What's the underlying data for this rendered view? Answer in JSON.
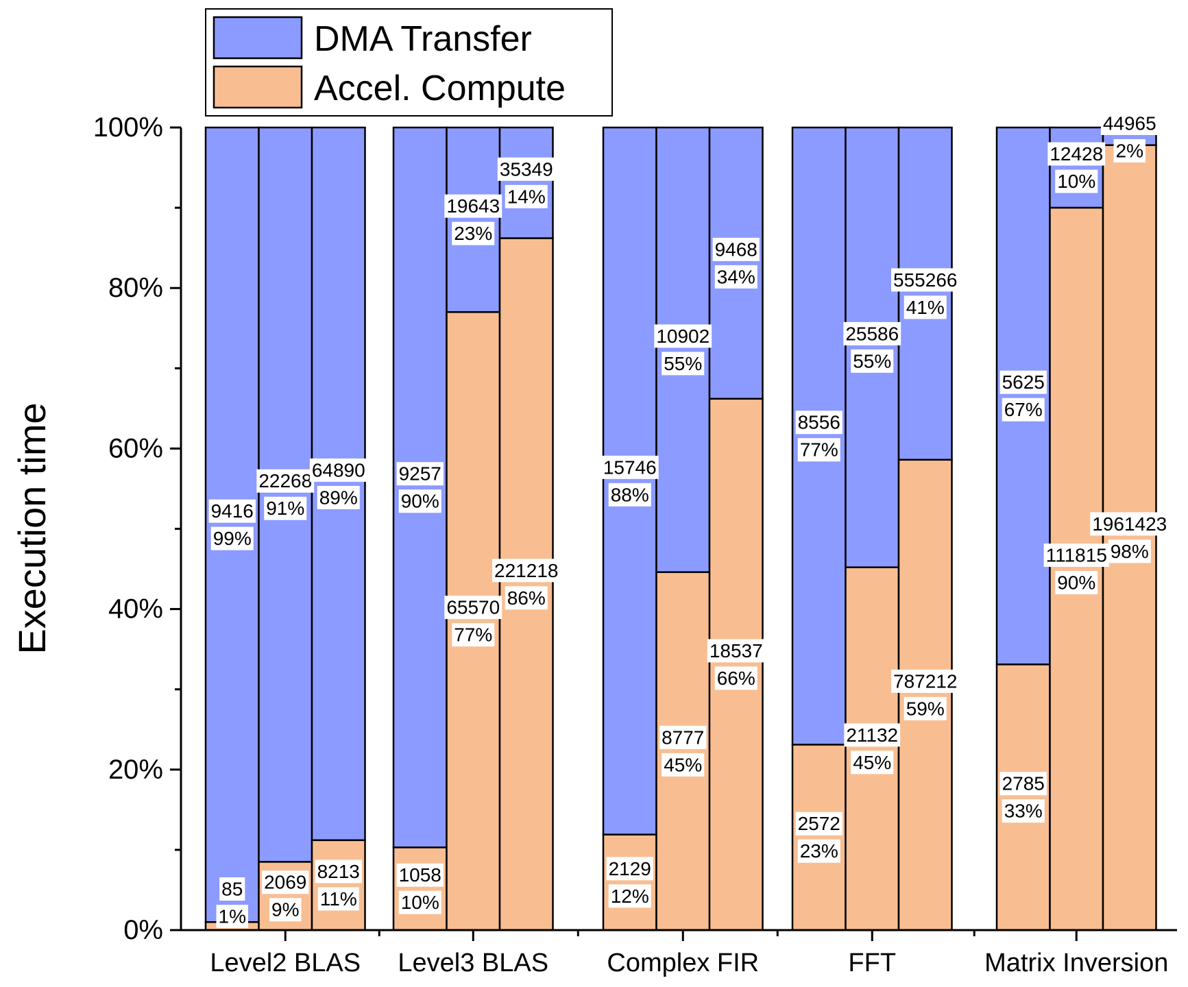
{
  "chart_data": {
    "type": "bar",
    "stacked": true,
    "normalized": true,
    "ylabel": "Execution time",
    "ylim": [
      0,
      100
    ],
    "yticks": [
      "0%",
      "20%",
      "40%",
      "60%",
      "80%",
      "100%"
    ],
    "legend_position": "top-left",
    "categories": [
      "Level2 BLAS",
      "Level3 BLAS",
      "Complex FIR",
      "FFT",
      "Matrix Inversion"
    ],
    "series": [
      {
        "name": "DMA Transfer",
        "color": "#8c9bff"
      },
      {
        "name": "Accel. Compute",
        "color": "#f8be92"
      }
    ],
    "groups": [
      {
        "category": "Level2 BLAS",
        "bars": [
          {
            "dma": {
              "value": "9416",
              "pct": "99%"
            },
            "compute": {
              "value": "85",
              "pct": "1%"
            },
            "compute_pct": 1
          },
          {
            "dma": {
              "value": "22268",
              "pct": "91%"
            },
            "compute": {
              "value": "2069",
              "pct": "9%"
            },
            "compute_pct": 8.5
          },
          {
            "dma": {
              "value": "64890",
              "pct": "89%"
            },
            "compute": {
              "value": "8213",
              "pct": "11%"
            },
            "compute_pct": 11.2
          }
        ]
      },
      {
        "category": "Level3 BLAS",
        "bars": [
          {
            "dma": {
              "value": "9257",
              "pct": "90%"
            },
            "compute": {
              "value": "1058",
              "pct": "10%"
            },
            "compute_pct": 10.3
          },
          {
            "dma": {
              "value": "19643",
              "pct": "23%"
            },
            "compute": {
              "value": "65570",
              "pct": "77%"
            },
            "compute_pct": 77
          },
          {
            "dma": {
              "value": "35349",
              "pct": "14%"
            },
            "compute": {
              "value": "221218",
              "pct": "86%"
            },
            "compute_pct": 86.2
          }
        ]
      },
      {
        "category": "Complex FIR",
        "bars": [
          {
            "dma": {
              "value": "15746",
              "pct": "88%"
            },
            "compute": {
              "value": "2129",
              "pct": "12%"
            },
            "compute_pct": 11.9
          },
          {
            "dma": {
              "value": "10902",
              "pct": "55%"
            },
            "compute": {
              "value": "8777",
              "pct": "45%"
            },
            "compute_pct": 44.6
          },
          {
            "dma": {
              "value": "9468",
              "pct": "34%"
            },
            "compute": {
              "value": "18537",
              "pct": "66%"
            },
            "compute_pct": 66.2
          }
        ]
      },
      {
        "category": "FFT",
        "bars": [
          {
            "dma": {
              "value": "8556",
              "pct": "77%"
            },
            "compute": {
              "value": "2572",
              "pct": "23%"
            },
            "compute_pct": 23.1
          },
          {
            "dma": {
              "value": "25586",
              "pct": "55%"
            },
            "compute": {
              "value": "21132",
              "pct": "45%"
            },
            "compute_pct": 45.2
          },
          {
            "dma": {
              "value": "555266",
              "pct": "41%"
            },
            "compute": {
              "value": "787212",
              "pct": "59%"
            },
            "compute_pct": 58.6
          }
        ]
      },
      {
        "category": "Matrix Inversion",
        "bars": [
          {
            "dma": {
              "value": "5625",
              "pct": "67%"
            },
            "compute": {
              "value": "2785",
              "pct": "33%"
            },
            "compute_pct": 33.1
          },
          {
            "dma": {
              "value": "12428",
              "pct": "10%"
            },
            "compute": {
              "value": "111815",
              "pct": "90%"
            },
            "compute_pct": 90
          },
          {
            "dma": {
              "value": "44965",
              "pct": "2%"
            },
            "compute": {
              "value": "1961423",
              "pct": "98%"
            },
            "compute_pct": 97.8
          }
        ]
      }
    ]
  }
}
